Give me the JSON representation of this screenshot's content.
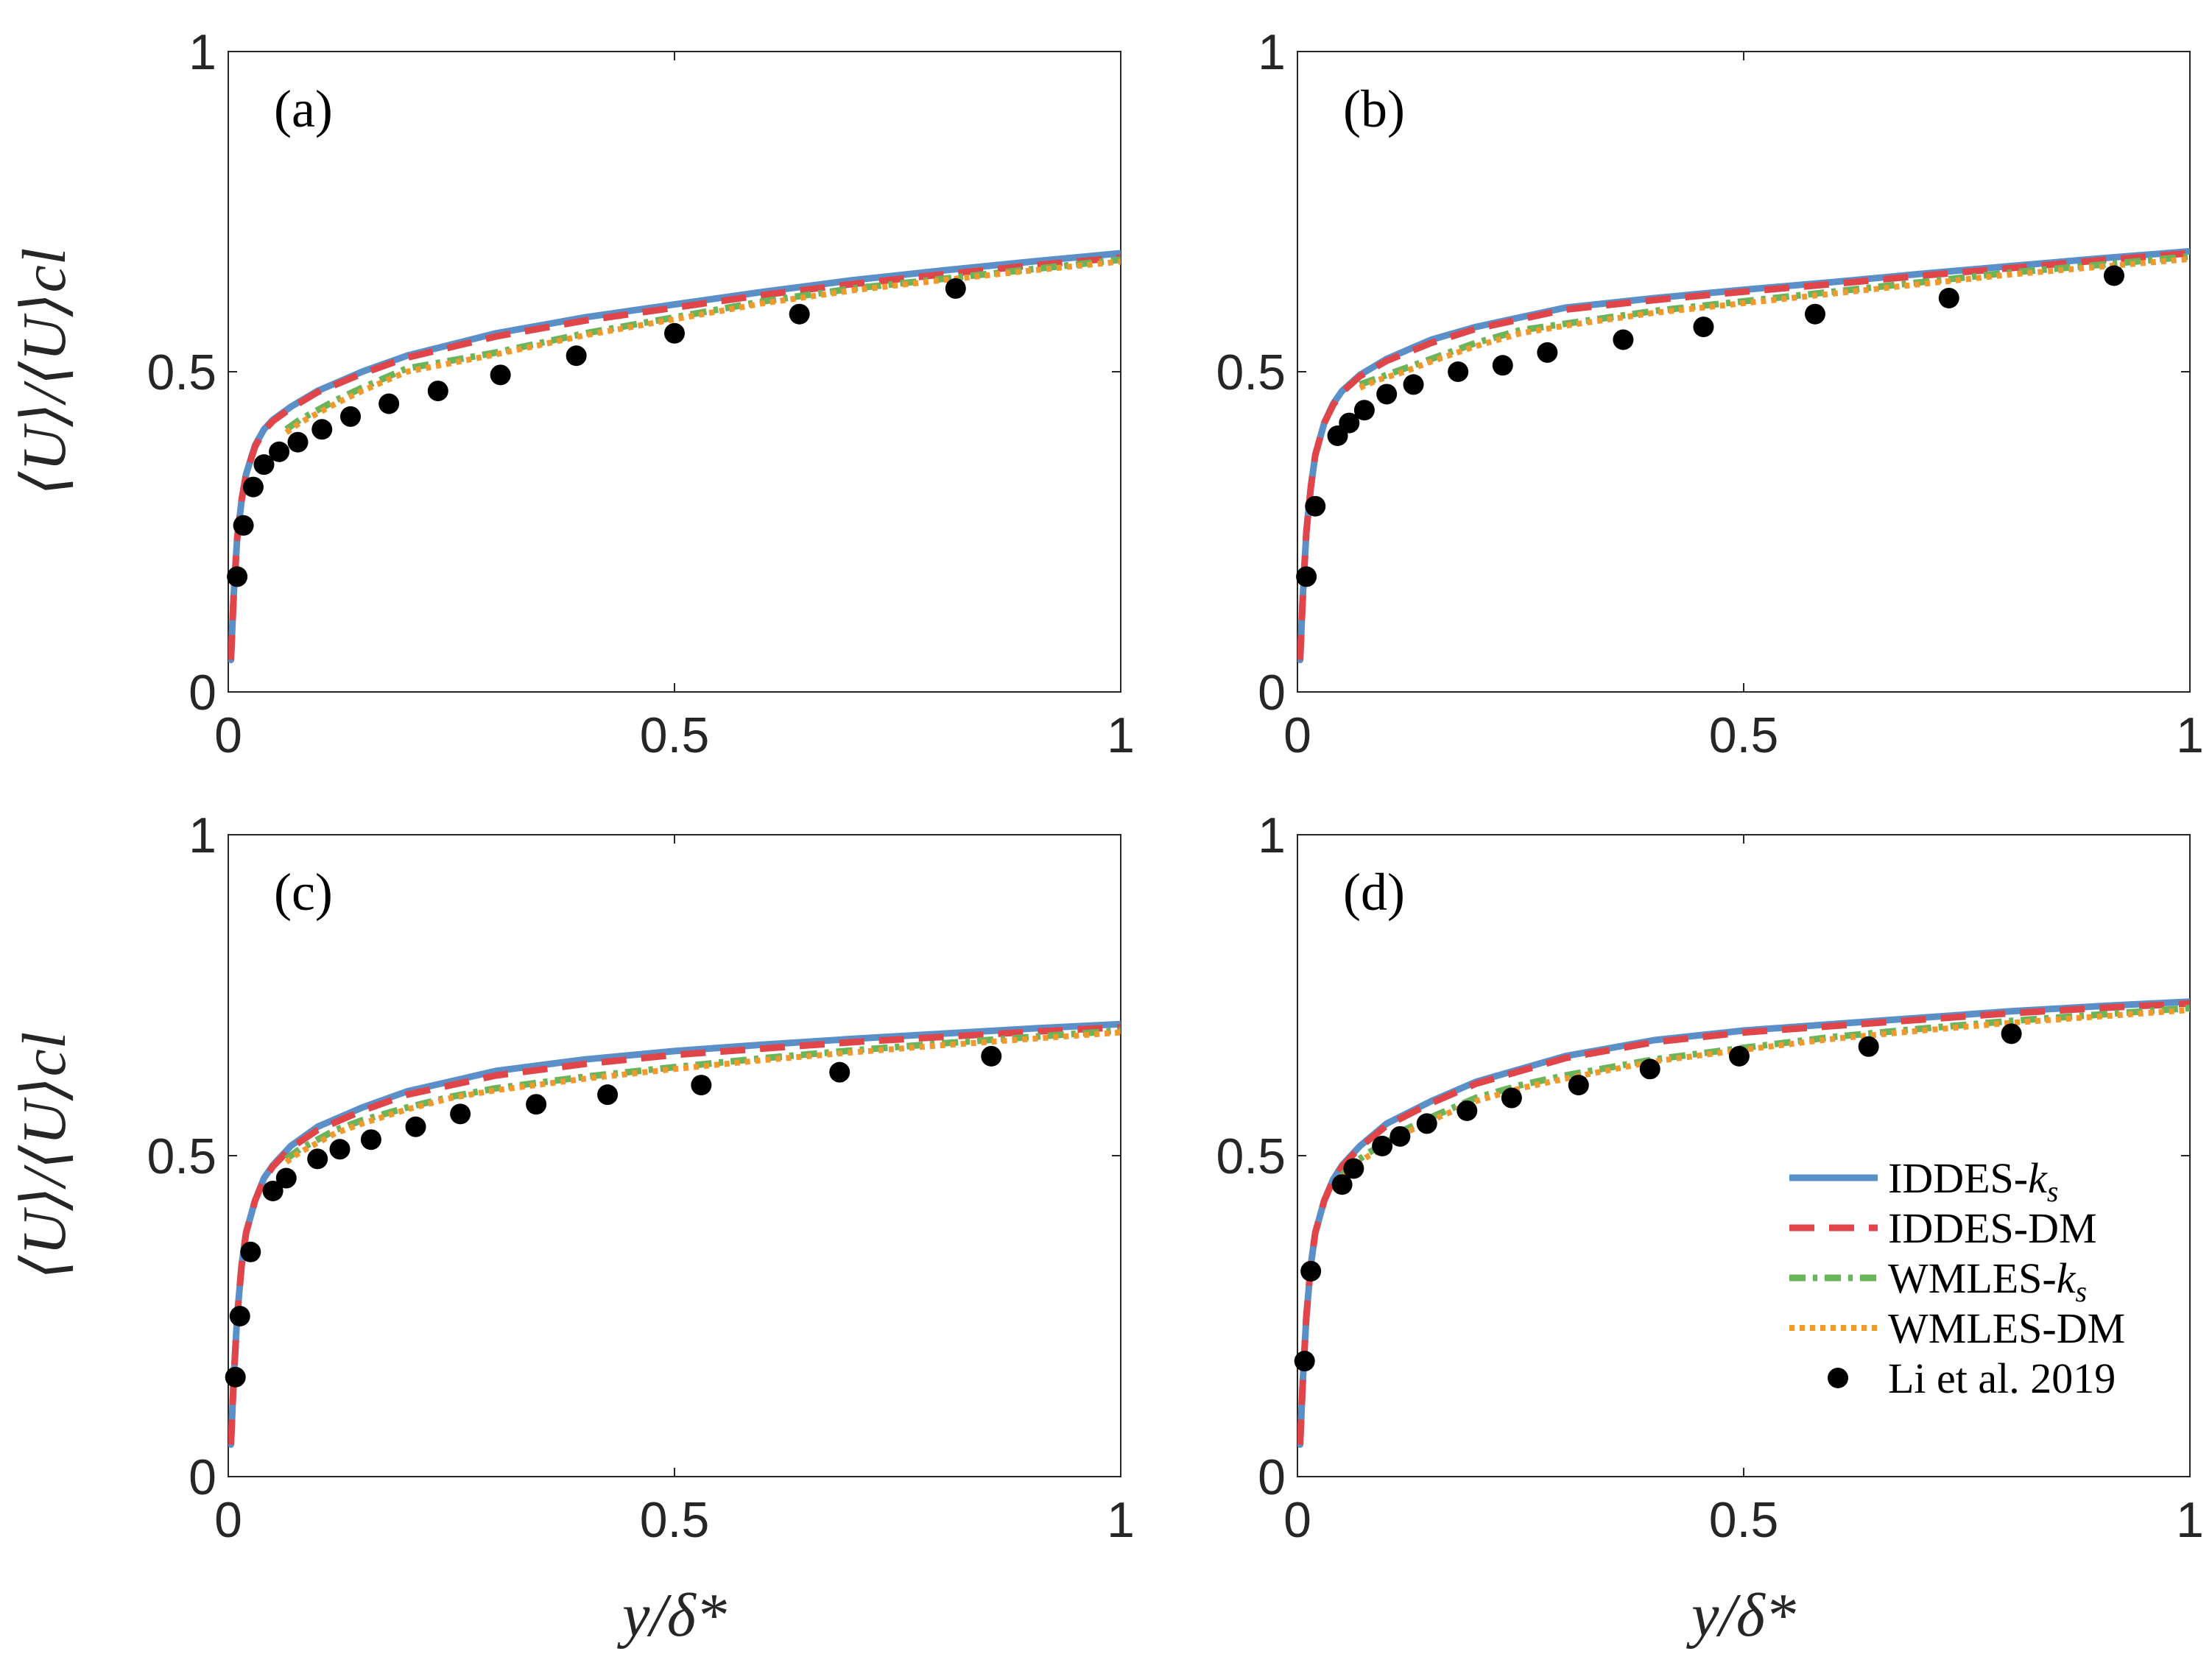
{
  "chart_data": {
    "type": "line",
    "layout": "2x2 grid",
    "x_label": "y/δ*",
    "y_label": "⟨U⟩/⟨U⟩cl",
    "xlim": [
      0,
      1
    ],
    "ylim": [
      0,
      1
    ],
    "x_ticks": [
      "0",
      "0.5",
      "1"
    ],
    "y_ticks": [
      "0",
      "0.5",
      "1"
    ],
    "legend": {
      "placement": "inside-bottom-right of panel (d)",
      "entries": [
        {
          "key": "iddes_ks",
          "base": "IDDES-",
          "sub": "k",
          "subsub": "s",
          "color": "#5b8fc7",
          "style": "solid"
        },
        {
          "key": "iddes_dm",
          "base": "IDDES-DM",
          "sub": "",
          "subsub": "",
          "color": "#e0454a",
          "style": "dashed"
        },
        {
          "key": "wmles_ks",
          "base": "WMLES-",
          "sub": "k",
          "subsub": "s",
          "color": "#6ab45a",
          "style": "dashdot"
        },
        {
          "key": "wmles_dm",
          "base": "WMLES-DM",
          "sub": "",
          "subsub": "",
          "color": "#f2992e",
          "style": "dotted"
        },
        {
          "key": "li2019",
          "base": "Li et al. 2019",
          "sub": "",
          "subsub": "",
          "color": "#000000",
          "style": "marker"
        }
      ]
    },
    "panels": [
      {
        "label": "(a)",
        "series": {
          "iddes_ks": {
            "x": [
              0.003,
              0.006,
              0.01,
              0.015,
              0.02,
              0.03,
              0.04,
              0.05,
              0.07,
              0.1,
              0.15,
              0.2,
              0.3,
              0.4,
              0.5,
              0.6,
              0.7,
              0.8,
              0.9,
              1.0
            ],
            "y": [
              0.05,
              0.15,
              0.24,
              0.3,
              0.34,
              0.385,
              0.41,
              0.425,
              0.445,
              0.47,
              0.5,
              0.525,
              0.56,
              0.585,
              0.605,
              0.625,
              0.643,
              0.658,
              0.672,
              0.685
            ]
          },
          "iddes_dm": {
            "x": [
              0.003,
              0.006,
              0.01,
              0.015,
              0.02,
              0.03,
              0.04,
              0.05,
              0.07,
              0.1,
              0.15,
              0.2,
              0.3,
              0.4,
              0.5,
              0.6,
              0.7,
              0.8,
              0.9,
              1.0
            ],
            "y": [
              0.05,
              0.15,
              0.24,
              0.3,
              0.34,
              0.383,
              0.408,
              0.423,
              0.443,
              0.468,
              0.497,
              0.522,
              0.555,
              0.58,
              0.6,
              0.62,
              0.637,
              0.652,
              0.666,
              0.678
            ]
          },
          "wmles_ks": {
            "x": [
              0.065,
              0.08,
              0.1,
              0.12,
              0.15,
              0.2,
              0.3,
              0.4,
              0.5,
              0.6,
              0.7,
              0.8,
              0.9,
              1.0
            ],
            "y": [
              0.41,
              0.425,
              0.44,
              0.455,
              0.475,
              0.505,
              0.53,
              0.56,
              0.585,
              0.61,
              0.63,
              0.645,
              0.66,
              0.675
            ]
          },
          "wmles_dm": {
            "x": [
              0.065,
              0.08,
              0.1,
              0.12,
              0.15,
              0.2,
              0.3,
              0.4,
              0.5,
              0.6,
              0.7,
              0.8,
              0.9,
              1.0
            ],
            "y": [
              0.405,
              0.42,
              0.435,
              0.45,
              0.47,
              0.5,
              0.527,
              0.557,
              0.582,
              0.607,
              0.627,
              0.643,
              0.658,
              0.672
            ]
          },
          "li2019": {
            "x": [
              0.01,
              0.017,
              0.028,
              0.04,
              0.057,
              0.078,
              0.105,
              0.137,
              0.18,
              0.235,
              0.305,
              0.39,
              0.5,
              0.64,
              0.815
            ],
            "y": [
              0.18,
              0.26,
              0.32,
              0.355,
              0.375,
              0.39,
              0.41,
              0.43,
              0.45,
              0.47,
              0.495,
              0.525,
              0.56,
              0.59,
              0.63
            ]
          }
        }
      },
      {
        "label": "(b)",
        "series": {
          "iddes_ks": {
            "x": [
              0.003,
              0.006,
              0.01,
              0.015,
              0.02,
              0.03,
              0.04,
              0.05,
              0.07,
              0.1,
              0.15,
              0.2,
              0.3,
              0.4,
              0.5,
              0.6,
              0.7,
              0.8,
              0.9,
              1.0
            ],
            "y": [
              0.05,
              0.15,
              0.25,
              0.32,
              0.37,
              0.42,
              0.45,
              0.47,
              0.495,
              0.52,
              0.55,
              0.57,
              0.6,
              0.615,
              0.628,
              0.64,
              0.653,
              0.665,
              0.677,
              0.688
            ]
          },
          "iddes_dm": {
            "x": [
              0.003,
              0.006,
              0.01,
              0.015,
              0.02,
              0.03,
              0.04,
              0.05,
              0.07,
              0.1,
              0.15,
              0.2,
              0.3,
              0.4,
              0.5,
              0.6,
              0.7,
              0.8,
              0.9,
              1.0
            ],
            "y": [
              0.05,
              0.15,
              0.25,
              0.32,
              0.37,
              0.42,
              0.448,
              0.468,
              0.493,
              0.517,
              0.545,
              0.567,
              0.597,
              0.612,
              0.625,
              0.637,
              0.65,
              0.662,
              0.674,
              0.685
            ]
          },
          "wmles_ks": {
            "x": [
              0.07,
              0.09,
              0.12,
              0.15,
              0.2,
              0.25,
              0.3,
              0.4,
              0.5,
              0.6,
              0.7,
              0.8,
              0.9,
              1.0
            ],
            "y": [
              0.48,
              0.49,
              0.505,
              0.52,
              0.545,
              0.565,
              0.575,
              0.595,
              0.61,
              0.625,
              0.64,
              0.655,
              0.667,
              0.68
            ]
          },
          "wmles_dm": {
            "x": [
              0.07,
              0.09,
              0.12,
              0.15,
              0.2,
              0.25,
              0.3,
              0.4,
              0.5,
              0.6,
              0.7,
              0.8,
              0.9,
              1.0
            ],
            "y": [
              0.475,
              0.487,
              0.5,
              0.516,
              0.54,
              0.56,
              0.572,
              0.592,
              0.607,
              0.622,
              0.637,
              0.652,
              0.664,
              0.676
            ]
          },
          "li2019": {
            "x": [
              0.01,
              0.02,
              0.045,
              0.058,
              0.075,
              0.1,
              0.13,
              0.18,
              0.23,
              0.28,
              0.365,
              0.455,
              0.58,
              0.73,
              0.915
            ],
            "y": [
              0.18,
              0.29,
              0.4,
              0.42,
              0.44,
              0.465,
              0.48,
              0.5,
              0.51,
              0.53,
              0.55,
              0.57,
              0.59,
              0.615,
              0.65
            ]
          }
        }
      },
      {
        "label": "(c)",
        "series": {
          "iddes_ks": {
            "x": [
              0.003,
              0.006,
              0.01,
              0.015,
              0.02,
              0.03,
              0.04,
              0.05,
              0.07,
              0.1,
              0.15,
              0.2,
              0.3,
              0.4,
              0.5,
              0.6,
              0.7,
              0.8,
              0.9,
              1.0
            ],
            "y": [
              0.05,
              0.15,
              0.25,
              0.33,
              0.38,
              0.43,
              0.465,
              0.485,
              0.515,
              0.545,
              0.575,
              0.6,
              0.632,
              0.65,
              0.663,
              0.673,
              0.682,
              0.69,
              0.698,
              0.705
            ]
          },
          "iddes_dm": {
            "x": [
              0.003,
              0.006,
              0.01,
              0.015,
              0.02,
              0.03,
              0.04,
              0.05,
              0.07,
              0.1,
              0.15,
              0.2,
              0.3,
              0.4,
              0.5,
              0.6,
              0.7,
              0.8,
              0.9,
              1.0
            ],
            "y": [
              0.05,
              0.15,
              0.25,
              0.33,
              0.38,
              0.43,
              0.463,
              0.483,
              0.512,
              0.54,
              0.57,
              0.595,
              0.625,
              0.643,
              0.657,
              0.667,
              0.677,
              0.685,
              0.693,
              0.7
            ]
          },
          "wmles_ks": {
            "x": [
              0.065,
              0.08,
              0.1,
              0.12,
              0.15,
              0.2,
              0.25,
              0.3,
              0.4,
              0.5,
              0.6,
              0.7,
              0.8,
              0.9,
              1.0
            ],
            "y": [
              0.495,
              0.51,
              0.525,
              0.54,
              0.555,
              0.575,
              0.592,
              0.605,
              0.623,
              0.638,
              0.652,
              0.664,
              0.675,
              0.685,
              0.695
            ]
          },
          "wmles_dm": {
            "x": [
              0.065,
              0.08,
              0.1,
              0.12,
              0.15,
              0.2,
              0.25,
              0.3,
              0.4,
              0.5,
              0.6,
              0.7,
              0.8,
              0.9,
              1.0
            ],
            "y": [
              0.49,
              0.505,
              0.52,
              0.535,
              0.55,
              0.572,
              0.59,
              0.602,
              0.62,
              0.635,
              0.649,
              0.661,
              0.672,
              0.682,
              0.692
            ]
          },
          "li2019": {
            "x": [
              0.008,
              0.013,
              0.025,
              0.05,
              0.065,
              0.1,
              0.125,
              0.16,
              0.21,
              0.26,
              0.345,
              0.425,
              0.53,
              0.685,
              0.855
            ],
            "y": [
              0.155,
              0.25,
              0.35,
              0.445,
              0.465,
              0.495,
              0.51,
              0.525,
              0.545,
              0.565,
              0.58,
              0.595,
              0.61,
              0.63,
              0.655
            ]
          }
        }
      },
      {
        "label": "(d)",
        "series": {
          "iddes_ks": {
            "x": [
              0.003,
              0.006,
              0.01,
              0.015,
              0.02,
              0.03,
              0.04,
              0.05,
              0.07,
              0.1,
              0.15,
              0.2,
              0.3,
              0.4,
              0.5,
              0.6,
              0.7,
              0.8,
              0.9,
              1.0
            ],
            "y": [
              0.05,
              0.15,
              0.25,
              0.33,
              0.38,
              0.43,
              0.463,
              0.485,
              0.515,
              0.55,
              0.585,
              0.615,
              0.655,
              0.68,
              0.695,
              0.705,
              0.715,
              0.725,
              0.733,
              0.74
            ]
          },
          "iddes_dm": {
            "x": [
              0.003,
              0.006,
              0.01,
              0.015,
              0.02,
              0.03,
              0.04,
              0.05,
              0.07,
              0.1,
              0.15,
              0.2,
              0.3,
              0.4,
              0.5,
              0.6,
              0.7,
              0.8,
              0.9,
              1.0
            ],
            "y": [
              0.05,
              0.15,
              0.25,
              0.33,
              0.38,
              0.43,
              0.462,
              0.483,
              0.513,
              0.547,
              0.582,
              0.612,
              0.652,
              0.677,
              0.692,
              0.702,
              0.712,
              0.722,
              0.73,
              0.737
            ]
          },
          "wmles_ks": {
            "x": [
              0.05,
              0.065,
              0.08,
              0.1,
              0.12,
              0.15,
              0.2,
              0.25,
              0.3,
              0.4,
              0.5,
              0.6,
              0.7,
              0.8,
              0.9,
              1.0
            ],
            "y": [
              0.47,
              0.49,
              0.505,
              0.52,
              0.54,
              0.56,
              0.59,
              0.61,
              0.625,
              0.65,
              0.668,
              0.685,
              0.698,
              0.71,
              0.72,
              0.73
            ]
          },
          "wmles_dm": {
            "x": [
              0.05,
              0.065,
              0.08,
              0.1,
              0.12,
              0.15,
              0.2,
              0.25,
              0.3,
              0.4,
              0.5,
              0.6,
              0.7,
              0.8,
              0.9,
              1.0
            ],
            "y": [
              0.465,
              0.485,
              0.5,
              0.515,
              0.535,
              0.555,
              0.585,
              0.605,
              0.62,
              0.647,
              0.665,
              0.682,
              0.695,
              0.707,
              0.717,
              0.727
            ]
          },
          "li2019": {
            "x": [
              0.008,
              0.015,
              0.05,
              0.063,
              0.095,
              0.115,
              0.145,
              0.19,
              0.24,
              0.315,
              0.395,
              0.495,
              0.64,
              0.8
            ],
            "y": [
              0.18,
              0.32,
              0.455,
              0.48,
              0.515,
              0.53,
              0.55,
              0.57,
              0.59,
              0.61,
              0.635,
              0.655,
              0.67,
              0.69
            ]
          }
        }
      }
    ]
  }
}
